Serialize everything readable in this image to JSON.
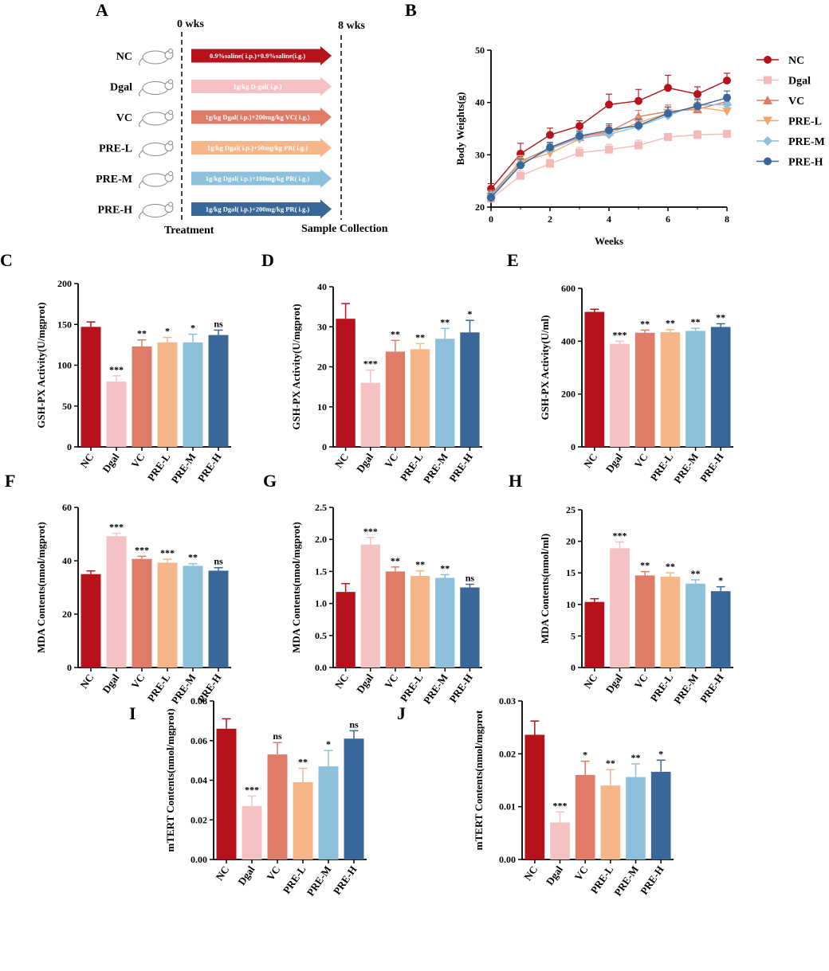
{
  "panel_letters": [
    "A",
    "B",
    "C",
    "D",
    "E",
    "F",
    "G",
    "H",
    "I",
    "J"
  ],
  "design": {
    "start_label": "0 wks",
    "end_label": "8 wks",
    "left_footer": "Treatment",
    "right_footer": "Sample Collection",
    "rows": [
      {
        "group": "NC",
        "treatment": "0.9%saline( i.p.)+0.9%saline(i.g.)",
        "color": "#b5121b",
        "text_color": "#ffffff"
      },
      {
        "group": "Dgal",
        "treatment": "1g/kg D-gal( i.p.)",
        "color": "#f4c2c2",
        "text_color": "#ffffff"
      },
      {
        "group": "VC",
        "treatment": "1g/kg Dgal( i.p.)+200mg/kg VC( i.g.)",
        "color": "#e07b67",
        "text_color": "#ffffff"
      },
      {
        "group": "PRE-L",
        "treatment": "1g/kg Dgal( i.p.)+50mg/kg PR( i.g.)",
        "color": "#f6b68a",
        "text_color": "#ffffff"
      },
      {
        "group": "PRE-M",
        "treatment": "1g/kg Dgal( i.p.)+100mg/kg PR( i.g.)",
        "color": "#8cc0db",
        "text_color": "#ffffff"
      },
      {
        "group": "PRE-H",
        "treatment": "1g/kg Dgal( i.p.)+200mg/kg PR( i.g.)",
        "color": "#3a6799",
        "text_color": "#ffffff"
      }
    ]
  },
  "group_colors": [
    "#b5121b",
    "#f4c2c2",
    "#e07b67",
    "#f6b68a",
    "#8cc0db",
    "#3a6799"
  ],
  "chart_data": [
    {
      "type": "line",
      "panel": "B",
      "xlabel": "Weeks",
      "ylabel": "Body Weights(g)",
      "x": [
        0,
        1,
        2,
        3,
        4,
        5,
        6,
        7,
        8
      ],
      "xticks": [
        0,
        2,
        4,
        6,
        8
      ],
      "yticks": [
        20,
        30,
        40,
        50
      ],
      "xlim": [
        0,
        8
      ],
      "ylim": [
        20,
        50
      ],
      "legend_position": "right",
      "series": [
        {
          "name": "NC",
          "marker": "circle",
          "color": "#b5121b",
          "values": [
            23.5,
            30.2,
            33.8,
            35.5,
            39.6,
            40.3,
            42.8,
            41.6,
            44.2
          ],
          "errors": [
            1.0,
            2.0,
            1.3,
            1.0,
            2.0,
            2.2,
            2.4,
            1.4,
            1.4
          ]
        },
        {
          "name": "Dgal",
          "marker": "square",
          "color": "#f4b9b9",
          "values": [
            21.6,
            26.0,
            28.3,
            30.4,
            31.0,
            31.8,
            33.4,
            33.8,
            34.0
          ],
          "errors": [
            0.8,
            1.0,
            0.8,
            1.0,
            1.0,
            1.0,
            0.5,
            0.8,
            0.5
          ]
        },
        {
          "name": "VC",
          "marker": "triangle",
          "color": "#e07b67",
          "values": [
            22.4,
            28.7,
            31.3,
            33.4,
            34.4,
            37.3,
            38.3,
            38.7,
            40.2
          ],
          "errors": [
            0.8,
            1.2,
            1.0,
            1.0,
            1.2,
            1.2,
            1.2,
            1.3,
            1.3
          ]
        },
        {
          "name": "PRE-L",
          "marker": "triangle-down",
          "color": "#f4a56a",
          "values": [
            22.0,
            28.6,
            30.3,
            33.0,
            34.2,
            36.1,
            38.0,
            39.1,
            38.3
          ],
          "errors": [
            0.8,
            1.2,
            1.0,
            1.0,
            1.2,
            1.2,
            1.2,
            1.3,
            1.3
          ]
        },
        {
          "name": "PRE-M",
          "marker": "diamond",
          "color": "#8cc0db",
          "values": [
            22.1,
            28.2,
            31.1,
            33.2,
            33.9,
            35.4,
            37.5,
            39.5,
            39.6
          ],
          "errors": [
            0.8,
            1.2,
            1.0,
            1.0,
            1.2,
            1.2,
            1.2,
            1.3,
            1.3
          ]
        },
        {
          "name": "PRE-H",
          "marker": "circle",
          "color": "#3a6799",
          "values": [
            21.8,
            28.0,
            31.4,
            33.6,
            34.7,
            35.6,
            37.9,
            39.3,
            40.9
          ],
          "errors": [
            0.8,
            1.2,
            1.0,
            1.0,
            1.2,
            1.2,
            1.2,
            1.3,
            1.3
          ]
        }
      ]
    },
    {
      "type": "bar",
      "panel": "C",
      "ylabel": "GSH-PX Activity(U/mgprot)",
      "categories": [
        "NC",
        "Dgal",
        "VC",
        "PRE-L",
        "PRE-M",
        "PRE-H"
      ],
      "values": [
        147,
        80,
        123,
        128,
        128,
        137
      ],
      "errors": [
        6,
        7,
        8,
        6,
        10,
        6
      ],
      "significance": [
        "",
        "***",
        "**",
        "*",
        "*",
        "ns"
      ],
      "ylim": [
        0,
        200
      ],
      "yticks": [
        0,
        50,
        100,
        150,
        200
      ]
    },
    {
      "type": "bar",
      "panel": "D",
      "ylabel": "GSH-PX Activity(U/mgprot)",
      "categories": [
        "NC",
        "Dgal",
        "VC",
        "PRE-L",
        "PRE-M",
        "PRE-H"
      ],
      "values": [
        32,
        16,
        23.8,
        24.4,
        27,
        28.6
      ],
      "errors": [
        3.8,
        3.2,
        2.8,
        1.4,
        2.6,
        3.0
      ],
      "significance": [
        "",
        "***",
        "**",
        "**",
        "**",
        "*"
      ],
      "ylim": [
        0,
        40
      ],
      "yticks": [
        0,
        10,
        20,
        30,
        40
      ]
    },
    {
      "type": "bar",
      "panel": "E",
      "ylabel": "GSH-PX Activity(U/ml)",
      "categories": [
        "NC",
        "Dgal",
        "VC",
        "PRE-L",
        "PRE-M",
        "PRE-H"
      ],
      "values": [
        511,
        390,
        432,
        434,
        439,
        454
      ],
      "errors": [
        10,
        10,
        10,
        10,
        10,
        12
      ],
      "significance": [
        "",
        "***",
        "**",
        "**",
        "**",
        "**"
      ],
      "ylim": [
        0,
        600
      ],
      "yticks": [
        0,
        200,
        400,
        600
      ]
    },
    {
      "type": "bar",
      "panel": "F",
      "ylabel": "MDA Contents(nmol/mgprot)",
      "categories": [
        "NC",
        "Dgal",
        "VC",
        "PRE-L",
        "PRE-M",
        "PRE-H"
      ],
      "values": [
        35,
        49.2,
        40.7,
        39.3,
        38.1,
        36.3
      ],
      "errors": [
        1.2,
        1.1,
        1.0,
        1.3,
        0.8,
        1.1
      ],
      "significance": [
        "",
        "***",
        "***",
        "***",
        "**",
        "ns"
      ],
      "ylim": [
        0,
        60
      ],
      "yticks": [
        0,
        20,
        40,
        60
      ]
    },
    {
      "type": "bar",
      "panel": "G",
      "ylabel": "MDA Contents(nmol/mgprot)",
      "categories": [
        "NC",
        "Dgal",
        "VC",
        "PRE-L",
        "PRE-M",
        "PRE-H"
      ],
      "values": [
        1.18,
        1.92,
        1.5,
        1.43,
        1.4,
        1.25
      ],
      "errors": [
        0.13,
        0.11,
        0.07,
        0.08,
        0.05,
        0.05
      ],
      "significance": [
        "",
        "***",
        "**",
        "**",
        "**",
        "ns"
      ],
      "ylim": [
        0,
        2.5
      ],
      "yticks": [
        "0.0",
        "0.5",
        "1.0",
        "1.5",
        "2.0",
        "2.5"
      ]
    },
    {
      "type": "bar",
      "panel": "H",
      "ylabel": "MDA Contents(nmol/ml)",
      "categories": [
        "NC",
        "Dgal",
        "VC",
        "PRE-L",
        "PRE-M",
        "PRE-H"
      ],
      "values": [
        10.4,
        18.9,
        14.6,
        14.4,
        13.3,
        12.1
      ],
      "errors": [
        0.5,
        1.0,
        0.6,
        0.6,
        0.6,
        0.7
      ],
      "significance": [
        "",
        "***",
        "**",
        "**",
        "**",
        "*"
      ],
      "ylim": [
        0,
        25
      ],
      "yticks": [
        0,
        5,
        10,
        15,
        20,
        25
      ]
    },
    {
      "type": "bar",
      "panel": "I",
      "ylabel": "mTERT Contents(nmol/mgprot)",
      "categories": [
        "NC",
        "Dgal",
        "VC",
        "PRE-L",
        "PRE-M",
        "PRE-H"
      ],
      "values": [
        0.066,
        0.027,
        0.053,
        0.039,
        0.047,
        0.061
      ],
      "errors": [
        0.005,
        0.005,
        0.006,
        0.007,
        0.008,
        0.004
      ],
      "significance": [
        "",
        "***",
        "ns",
        "**",
        "*",
        "ns"
      ],
      "ylim": [
        0,
        0.08
      ],
      "yticks": [
        "0.00",
        "0.02",
        "0.04",
        "0.06",
        "0.08"
      ]
    },
    {
      "type": "bar",
      "panel": "J",
      "ylabel": "mTERT Contents(nmol/mgprot",
      "categories": [
        "NC",
        "Dgal",
        "VC",
        "PRE-L",
        "PRE-M",
        "PRE-H"
      ],
      "values": [
        0.0236,
        0.007,
        0.016,
        0.014,
        0.0156,
        0.0166
      ],
      "errors": [
        0.0026,
        0.002,
        0.0026,
        0.003,
        0.0025,
        0.0022
      ],
      "significance": [
        "",
        "***",
        "*",
        "**",
        "**",
        "*"
      ],
      "ylim": [
        0,
        0.03
      ],
      "yticks": [
        "0.00",
        "0.01",
        "0.02",
        "0.03"
      ]
    }
  ]
}
